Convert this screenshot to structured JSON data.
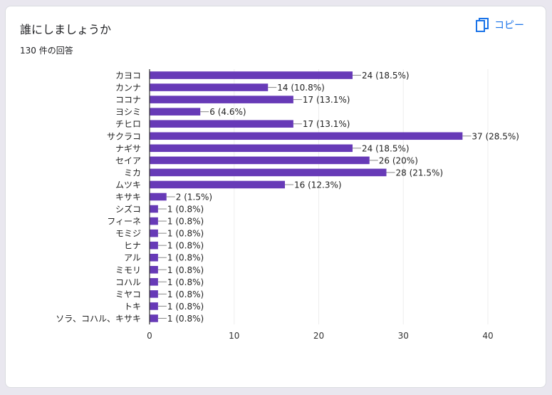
{
  "header": {
    "question": "誰にしましょうか",
    "response_count": "130 件の回答",
    "copy_label": "コピー"
  },
  "colors": {
    "bar": "#673ab7",
    "accent": "#1a73e8",
    "grid": "#eeeeee"
  },
  "chart_data": {
    "type": "bar",
    "orientation": "horizontal",
    "categories": [
      "カヨコ",
      "カンナ",
      "ココナ",
      "ヨシミ",
      "チヒロ",
      "サクラコ",
      "ナギサ",
      "セイア",
      "ミカ",
      "ムツキ",
      "キサキ",
      "シズコ",
      "フィーネ",
      "モミジ",
      "ヒナ",
      "アル",
      "ミモリ",
      "コハル",
      "ミヤコ",
      "トキ",
      "ソラ、コハル、キサキ"
    ],
    "values": [
      24,
      14,
      17,
      6,
      17,
      37,
      24,
      26,
      28,
      16,
      2,
      1,
      1,
      1,
      1,
      1,
      1,
      1,
      1,
      1,
      1
    ],
    "labels": [
      "24 (18.5%)",
      "14 (10.8%)",
      "17 (13.1%)",
      "6 (4.6%)",
      "17 (13.1%)",
      "37 (28.5%)",
      "24 (18.5%)",
      "26 (20%)",
      "28 (21.5%)",
      "16 (12.3%)",
      "2 (1.5%)",
      "1 (0.8%)",
      "1 (0.8%)",
      "1 (0.8%)",
      "1 (0.8%)",
      "1 (0.8%)",
      "1 (0.8%)",
      "1 (0.8%)",
      "1 (0.8%)",
      "1 (0.8%)",
      "1 (0.8%)"
    ],
    "xlim": [
      0,
      40
    ],
    "xticks": [
      0,
      10,
      20,
      30,
      40
    ],
    "grid": true
  }
}
